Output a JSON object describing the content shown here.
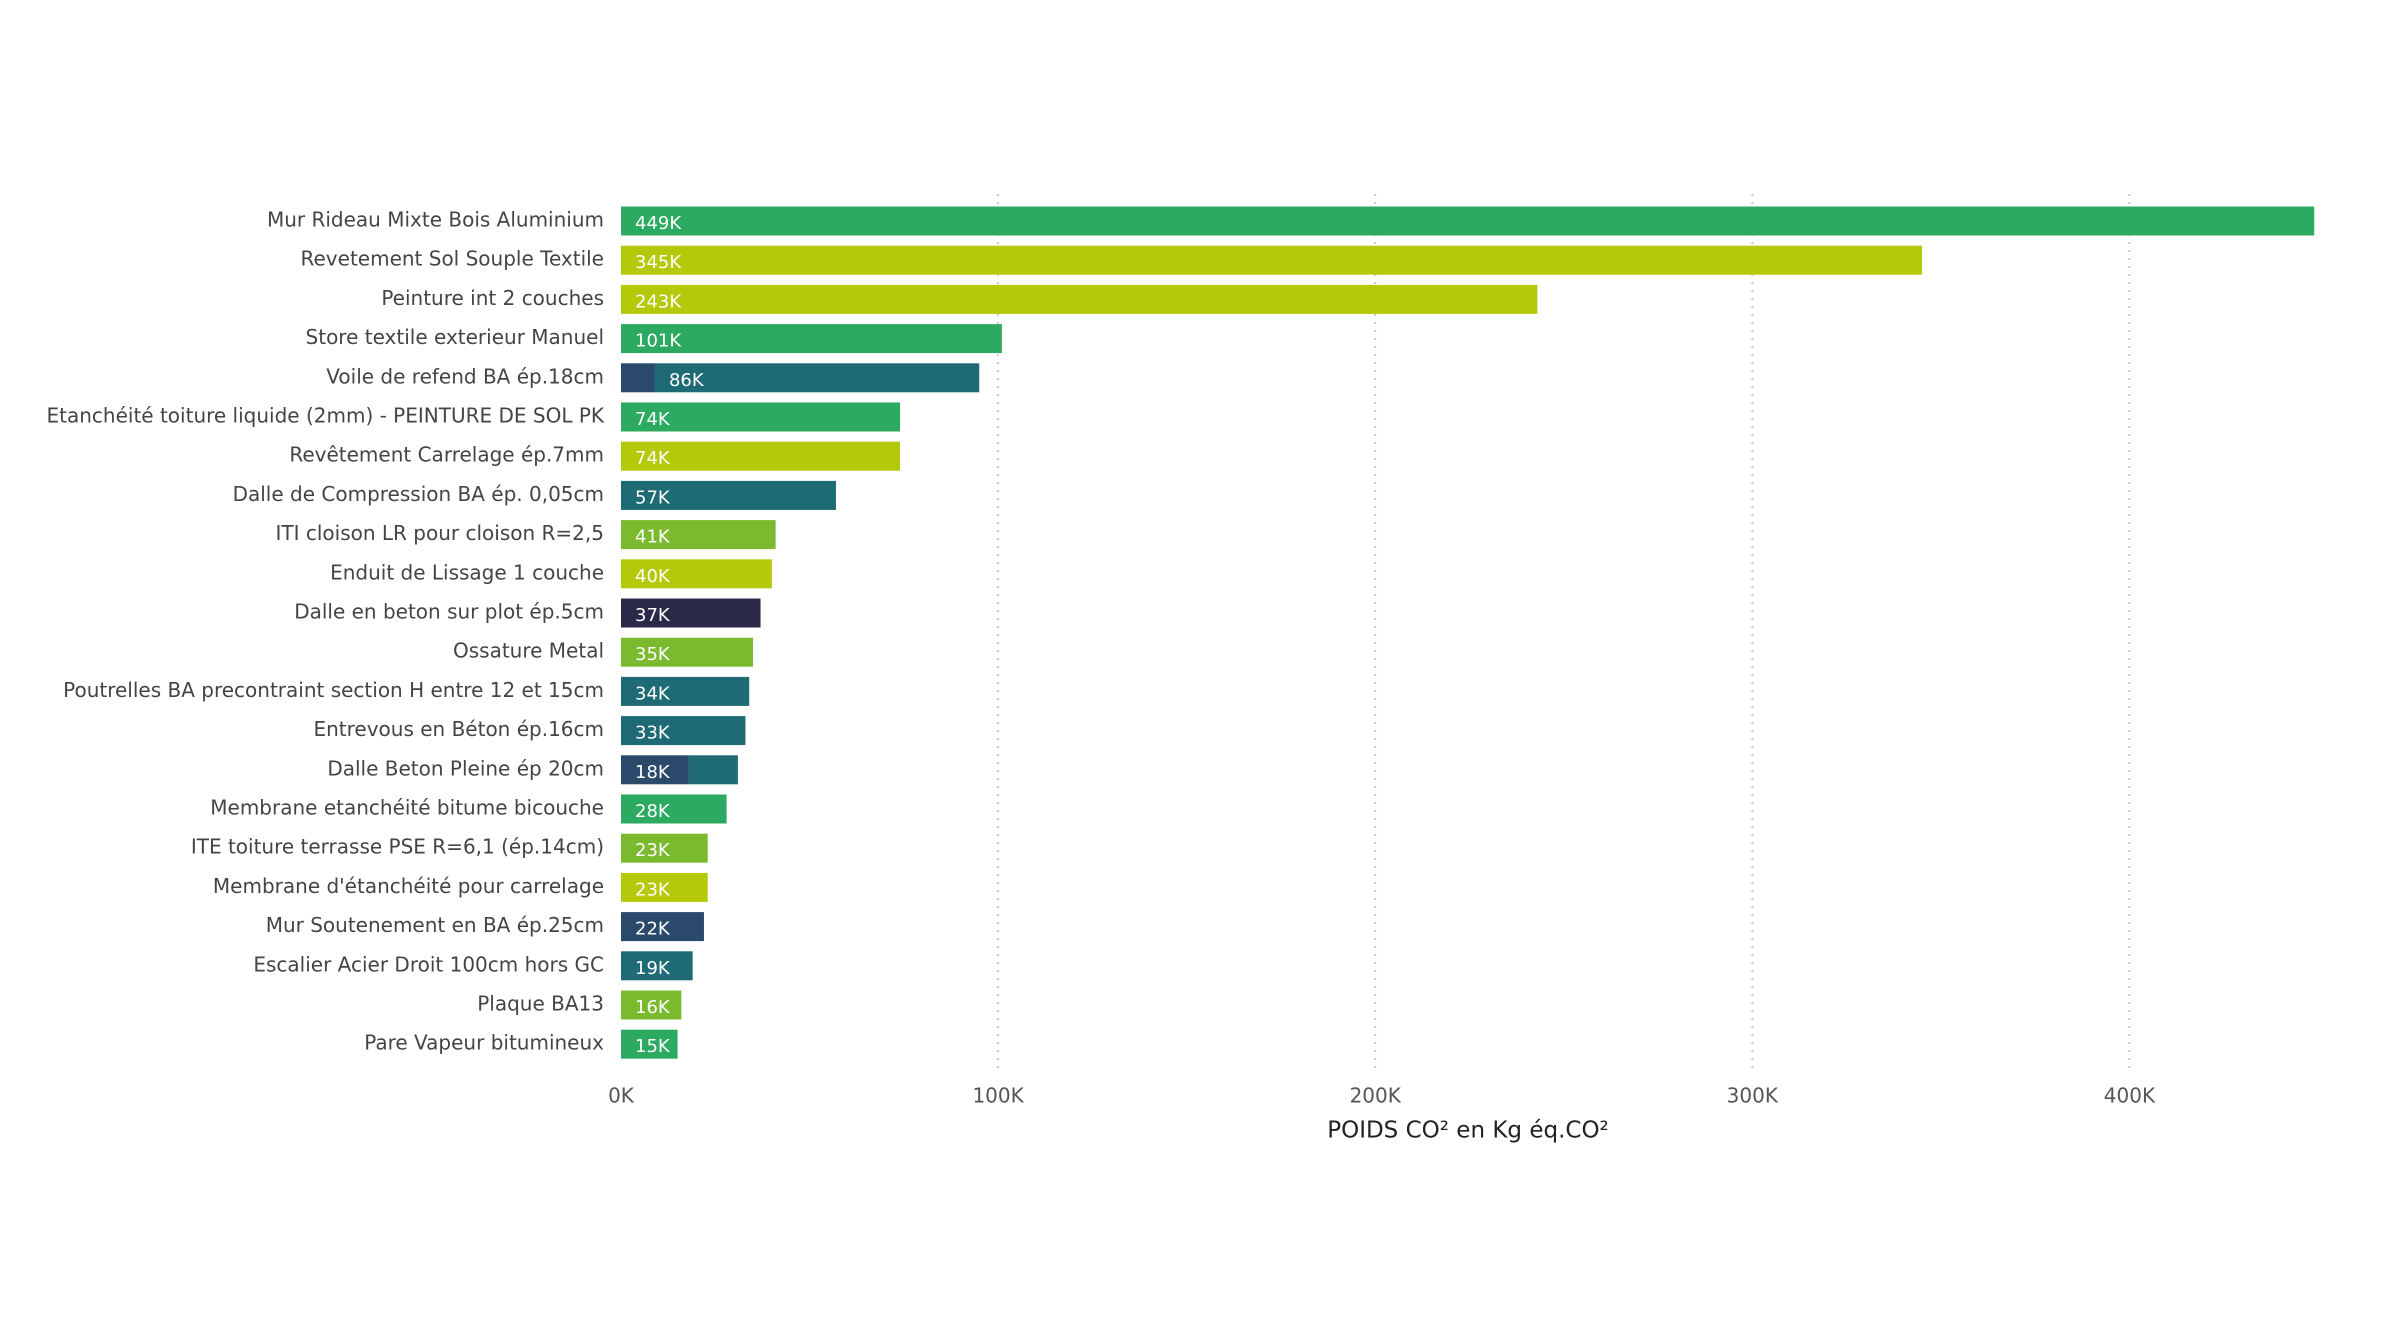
{
  "chart_data": {
    "type": "stacked-horizontal-bar",
    "x_axis_label": "POIDS CO² en Kg éq.CO²",
    "categories": [
      "Mur Rideau Mixte Bois Aluminium",
      "Revetement Sol Souple Textile",
      "Peinture int 2 couches",
      "Store textile exterieur Manuel",
      "Voile de refend BA ép.18cm",
      "Etanchéité toiture liquide (2mm) - PEINTURE DE SOL PK",
      "Revêtement Carrelage ép.7mm",
      "Dalle de Compression BA ép. 0,05cm",
      "ITI cloison LR pour cloison R=2,5",
      "Enduit de Lissage 1 couche",
      "Dalle en beton sur plot ép.5cm",
      "Ossature Metal",
      "Poutrelles BA precontraint section H entre 12 et 15cm",
      "Entrevous en Béton ép.16cm",
      "Dalle Beton Pleine ép 20cm",
      "Membrane etanchéité bitume bicouche",
      "ITE toiture terrasse PSE R=6,1 (ép.14cm)",
      "Membrane d'étanchéité pour carrelage",
      "Mur Soutenement en BA ép.25cm",
      "Escalier Acier Droit 100cm hors GC",
      "Plaque BA13",
      "Pare Vapeur bitumineux"
    ],
    "series": [
      {
        "color": "#2b4a6b",
        "values": [
          null,
          null,
          null,
          null,
          9000,
          null,
          null,
          null,
          null,
          null,
          null,
          null,
          null,
          null,
          18000,
          null,
          null,
          null,
          22000,
          null,
          null,
          null
        ],
        "value_labels": [
          null,
          null,
          null,
          null,
          null,
          null,
          null,
          null,
          null,
          null,
          null,
          null,
          null,
          null,
          "18K",
          null,
          null,
          null,
          "22K",
          null,
          null,
          null
        ]
      },
      {
        "color": "#2b2948",
        "values": [
          null,
          null,
          null,
          null,
          null,
          null,
          null,
          null,
          null,
          null,
          37000,
          null,
          null,
          null,
          null,
          null,
          null,
          null,
          null,
          null,
          null,
          null
        ],
        "value_labels": [
          null,
          null,
          null,
          null,
          null,
          null,
          null,
          null,
          null,
          null,
          "37K",
          null,
          null,
          null,
          null,
          null,
          null,
          null,
          null,
          null,
          null,
          null
        ]
      },
      {
        "color": "#2daa62",
        "values": [
          449000,
          null,
          null,
          101000,
          null,
          74000,
          null,
          null,
          null,
          null,
          null,
          null,
          null,
          null,
          null,
          28000,
          null,
          null,
          null,
          null,
          null,
          15000
        ],
        "value_labels": [
          "449K",
          null,
          null,
          "101K",
          null,
          "74K",
          null,
          null,
          null,
          null,
          null,
          null,
          null,
          null,
          null,
          "28K",
          null,
          null,
          null,
          null,
          null,
          "15K"
        ]
      },
      {
        "color": "#b5c90b",
        "values": [
          null,
          345000,
          243000,
          null,
          null,
          null,
          74000,
          null,
          null,
          40000,
          null,
          null,
          null,
          null,
          null,
          null,
          null,
          23000,
          null,
          null,
          null,
          null
        ],
        "value_labels": [
          null,
          "345K",
          "243K",
          null,
          null,
          null,
          "74K",
          null,
          null,
          "40K",
          null,
          null,
          null,
          null,
          null,
          null,
          null,
          "23K",
          null,
          null,
          null,
          null
        ]
      },
      {
        "color": "#7bb92f",
        "values": [
          null,
          null,
          null,
          null,
          null,
          null,
          null,
          null,
          41000,
          null,
          null,
          35000,
          null,
          null,
          null,
          null,
          23000,
          null,
          null,
          null,
          16000,
          null
        ],
        "value_labels": [
          null,
          null,
          null,
          null,
          null,
          null,
          null,
          null,
          "41K",
          null,
          null,
          "35K",
          null,
          null,
          null,
          null,
          "23K",
          null,
          null,
          null,
          "16K",
          null
        ]
      },
      {
        "color": "#1e6b76",
        "values": [
          null,
          null,
          null,
          null,
          86000,
          null,
          null,
          57000,
          null,
          null,
          null,
          null,
          34000,
          33000,
          13000,
          null,
          null,
          null,
          null,
          19000,
          null,
          null
        ],
        "value_labels": [
          null,
          null,
          null,
          null,
          "86K",
          null,
          null,
          "57K",
          null,
          null,
          null,
          null,
          "34K",
          "33K",
          null,
          null,
          null,
          null,
          null,
          "19K",
          null,
          null
        ]
      }
    ],
    "xlim": [
      0,
      450000
    ],
    "xticks": [
      {
        "value": 0,
        "label": "0K"
      },
      {
        "value": 100000,
        "label": "100K"
      },
      {
        "value": 200000,
        "label": "200K"
      },
      {
        "value": 300000,
        "label": "300K"
      },
      {
        "value": 400000,
        "label": "400K"
      }
    ],
    "grid": true
  }
}
